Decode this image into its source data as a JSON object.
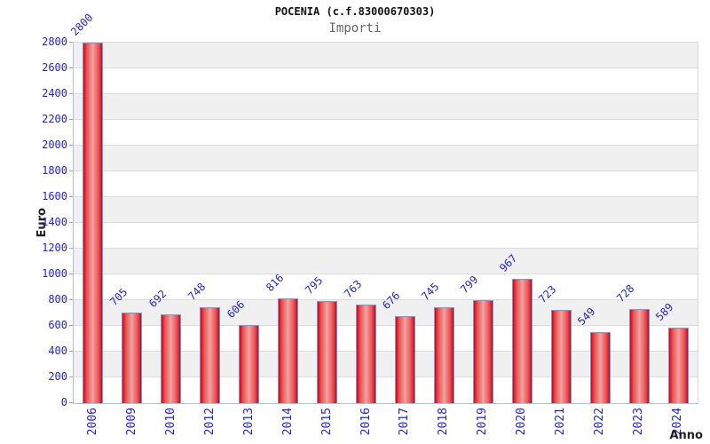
{
  "chart_data": {
    "type": "bar",
    "title": "POCENIA (c.f.83000670303)",
    "subtitle": "Importi",
    "xlabel": "Anno",
    "ylabel": "Euro",
    "categories": [
      "2006",
      "2009",
      "2010",
      "2012",
      "2013",
      "2014",
      "2015",
      "2016",
      "2017",
      "2018",
      "2019",
      "2020",
      "2021",
      "2022",
      "2023",
      "2024"
    ],
    "values": [
      2800,
      705,
      692,
      748,
      606,
      816,
      795,
      763,
      676,
      745,
      799,
      967,
      723,
      549,
      728,
      589
    ],
    "ylim": [
      0,
      2800
    ],
    "ytick_step": 200,
    "ytick_labels": [
      "0",
      "200",
      "400",
      "600",
      "800",
      "1000",
      "1200",
      "1400",
      "1600",
      "1800",
      "2000",
      "2200",
      "2400",
      "2600",
      "2800"
    ],
    "grid": "horizontal-bands-alternating",
    "legend_position": "none",
    "colors": {
      "label_blue": "#2323cc",
      "bar_red": "#d6001c",
      "bar_red_light": "#f2a3a3",
      "bar_border_blue": "#5aa2e4",
      "band_gray": "#f0f0f0",
      "grid_line": "#dcdcdc",
      "axis_line": "#b2c0d4",
      "title_color": "#111111",
      "subtitle_color": "#666666",
      "axis_title_color": "#222222"
    }
  }
}
